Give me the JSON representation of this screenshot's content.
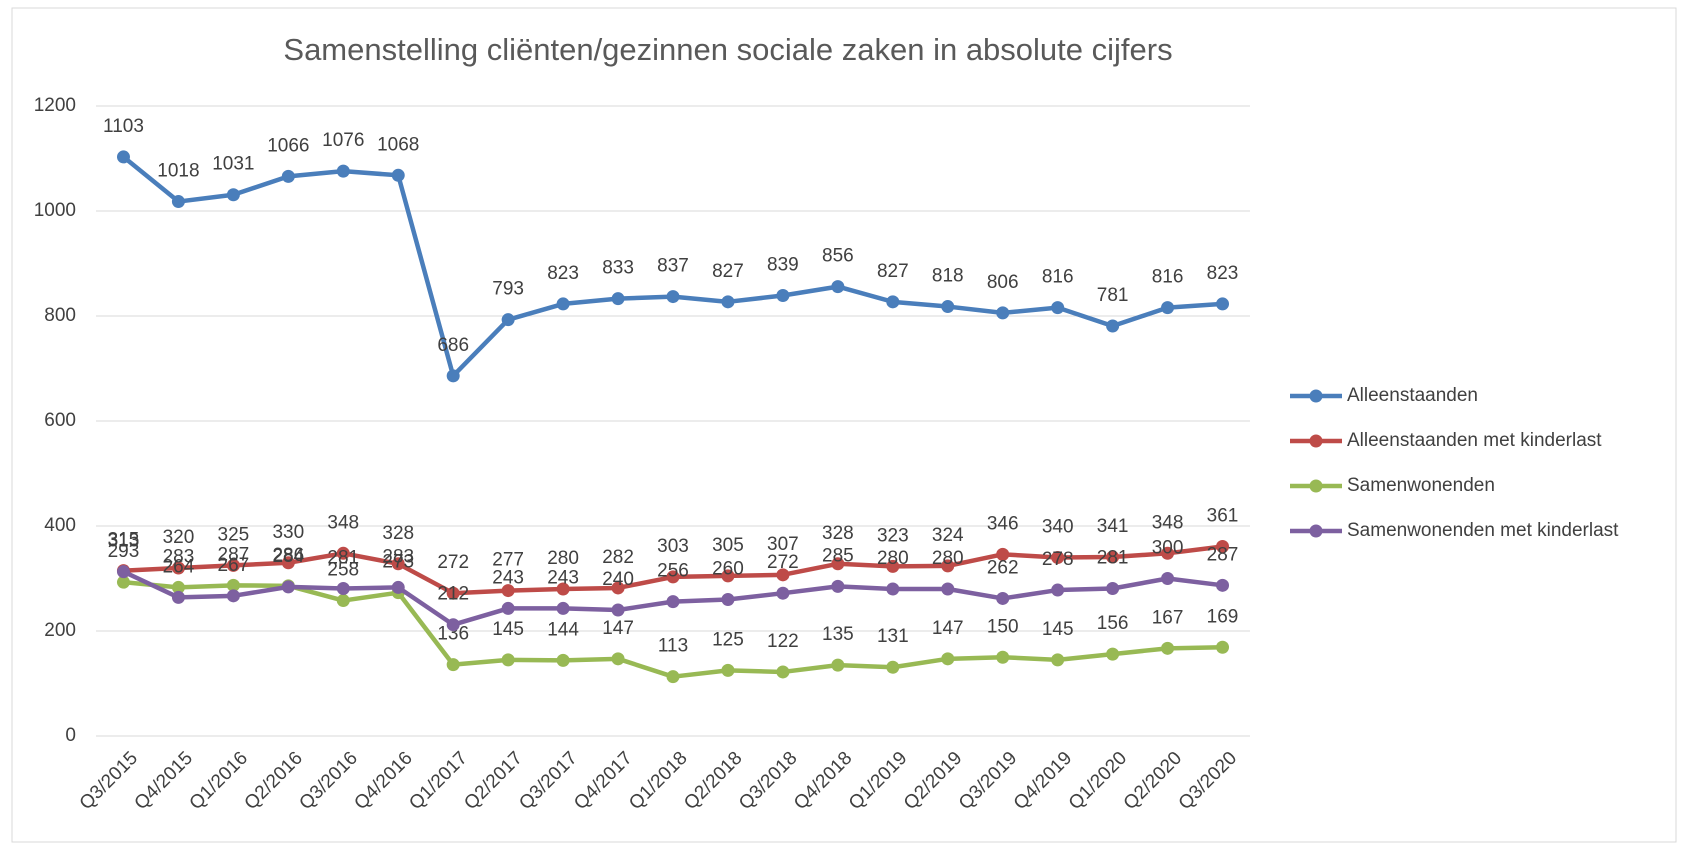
{
  "chart_data": {
    "type": "line",
    "title": "Samenstelling cliënten/gezinnen sociale zaken in absolute cijfers",
    "categories": [
      "Q3/2015",
      "Q4/2015",
      "Q1/2016",
      "Q2/2016",
      "Q3/2016",
      "Q4/2016",
      "Q1/2017",
      "Q2/2017",
      "Q3/2017",
      "Q4/2017",
      "Q1/2018",
      "Q2/2018",
      "Q3/2018",
      "Q4/2018",
      "Q1/2019",
      "Q2/2019",
      "Q3/2019",
      "Q4/2019",
      "Q1/2020",
      "Q2/2020",
      "Q3/2020"
    ],
    "series": [
      {
        "name": "Alleenstaanden",
        "color": "#4a7ebb",
        "values": [
          1103,
          1018,
          1031,
          1066,
          1076,
          1068,
          686,
          793,
          823,
          833,
          837,
          827,
          839,
          856,
          827,
          818,
          806,
          816,
          781,
          816,
          823
        ]
      },
      {
        "name": "Alleenstaanden met kinderlast",
        "color": "#be4b48",
        "values": [
          315,
          320,
          325,
          330,
          348,
          328,
          272,
          277,
          280,
          282,
          303,
          305,
          307,
          328,
          323,
          324,
          346,
          340,
          341,
          348,
          361
        ]
      },
      {
        "name": "Samenwonenden",
        "color": "#98b954",
        "values": [
          293,
          283,
          287,
          286,
          258,
          273,
          136,
          145,
          144,
          147,
          113,
          125,
          122,
          135,
          131,
          147,
          150,
          145,
          156,
          167,
          169
        ]
      },
      {
        "name": "Samenwonenden met kinderlast",
        "color": "#7d60a0",
        "values": [
          313,
          264,
          267,
          284,
          281,
          283,
          212,
          243,
          243,
          240,
          256,
          260,
          272,
          285,
          280,
          280,
          262,
          278,
          281,
          300,
          287
        ]
      }
    ],
    "ylim": [
      0,
      1200
    ],
    "yticks": [
      0,
      200,
      400,
      600,
      800,
      1000,
      1200
    ],
    "grid": true,
    "legend": "right"
  }
}
